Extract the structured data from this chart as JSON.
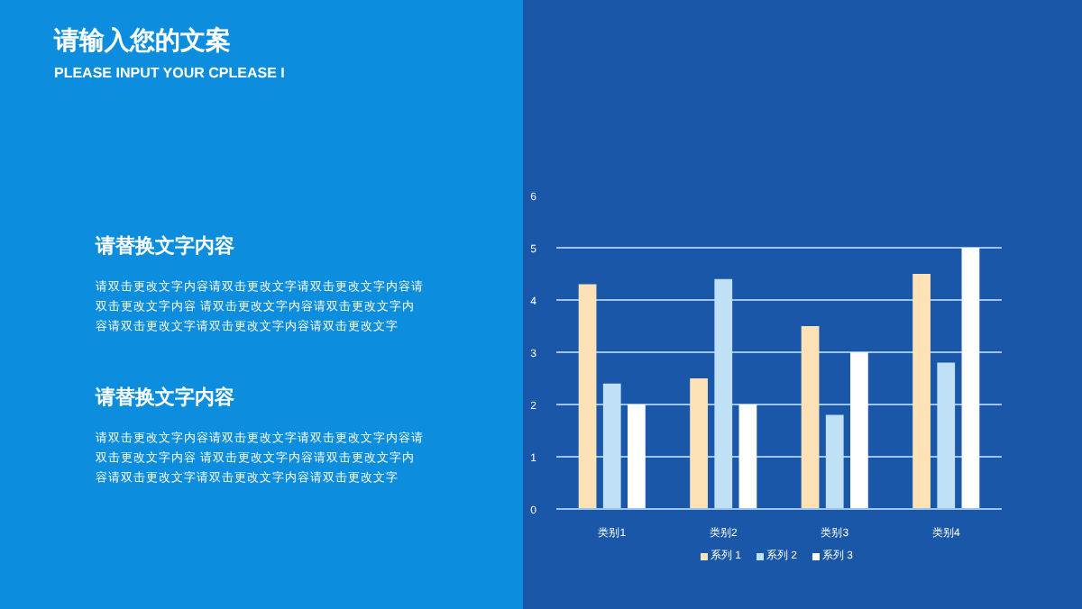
{
  "chart_data": {
    "type": "bar",
    "title": "请输入您的文案",
    "subtitle": "PLEASE INPUT YOUR CPLEASE I",
    "annotations": [
      "请替换文字内容",
      "请双击更改文字内容请双击更改文字请双击更改文字内容请双击更改文字内容 请双击更改文字内容请双击更改文字内容请双击更改文字请双击更改文字内容请双击更改文字",
      "请替换文字内容",
      "请双击更改文字内容请双击更改文字请双击更改文字内容请双击更改文字内容 请双击更改文字内容请双击更改文字内容请双击更改文字请双击更改文字内容请双击更改文字"
    ],
    "categories": [
      "类别1",
      "类别2",
      "类别3",
      "类别4"
    ],
    "series": [
      {
        "name": "系列 1",
        "color": "#fde2b8",
        "values": [
          4.3,
          2.5,
          3.5,
          4.5
        ]
      },
      {
        "name": "系列 2",
        "color": "#bfe0f5",
        "values": [
          2.4,
          4.4,
          1.8,
          2.8
        ]
      },
      {
        "name": "系列 3",
        "color": "#ffffff",
        "values": [
          2,
          2,
          3,
          5
        ]
      }
    ],
    "ylim": [
      0,
      6
    ],
    "yticks": [
      0,
      1,
      2,
      3,
      4,
      5,
      6
    ],
    "grid": "y",
    "legend": "bottom"
  }
}
